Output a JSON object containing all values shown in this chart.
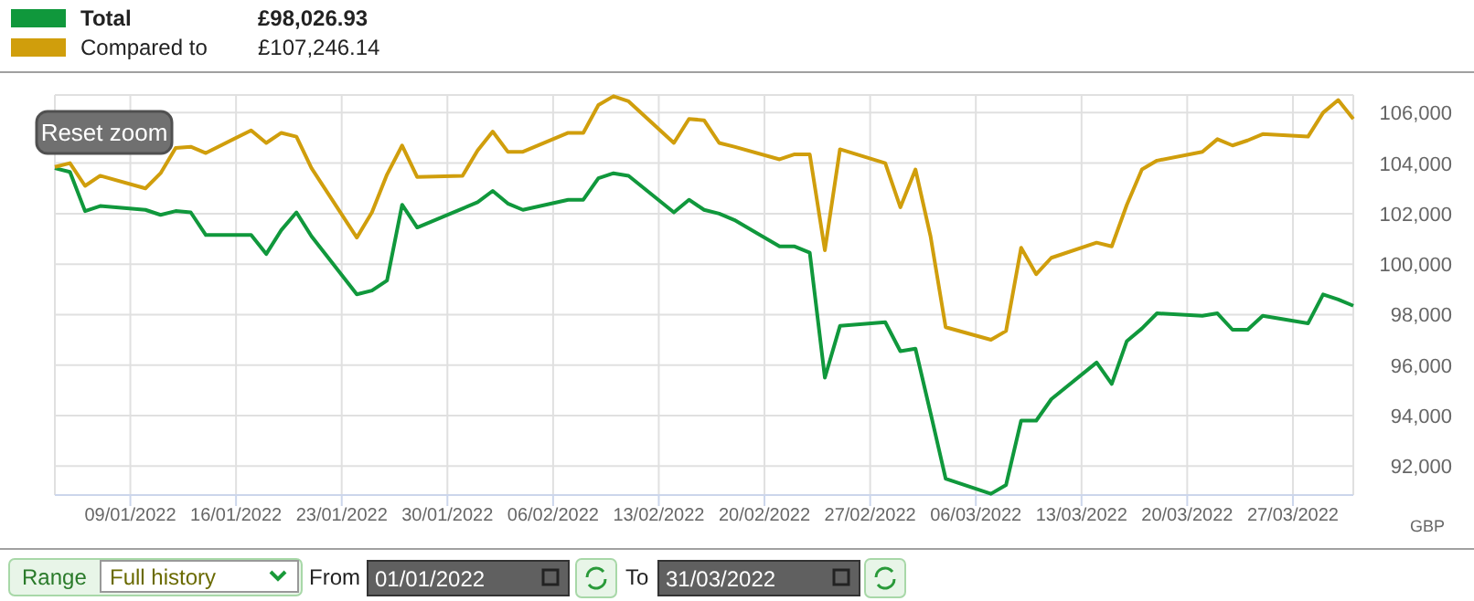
{
  "chart_data": {
    "type": "line",
    "ylabel": "GBP",
    "legend": "top left",
    "grid": true,
    "marker": "none",
    "line_style": "solid",
    "x": [
      "2022-01-04",
      "2022-01-05",
      "2022-01-06",
      "2022-01-07",
      "2022-01-10",
      "2022-01-11",
      "2022-01-12",
      "2022-01-13",
      "2022-01-14",
      "2022-01-17",
      "2022-01-18",
      "2022-01-19",
      "2022-01-20",
      "2022-01-21",
      "2022-01-24",
      "2022-01-25",
      "2022-01-26",
      "2022-01-27",
      "2022-01-28",
      "2022-01-31",
      "2022-02-01",
      "2022-02-02",
      "2022-02-03",
      "2022-02-04",
      "2022-02-07",
      "2022-02-08",
      "2022-02-09",
      "2022-02-10",
      "2022-02-11",
      "2022-02-14",
      "2022-02-15",
      "2022-02-16",
      "2022-02-17",
      "2022-02-18",
      "2022-02-21",
      "2022-02-22",
      "2022-02-23",
      "2022-02-24",
      "2022-02-25",
      "2022-02-28",
      "2022-03-01",
      "2022-03-02",
      "2022-03-03",
      "2022-03-04",
      "2022-03-07",
      "2022-03-08",
      "2022-03-09",
      "2022-03-10",
      "2022-03-11",
      "2022-03-14",
      "2022-03-15",
      "2022-03-16",
      "2022-03-17",
      "2022-03-18",
      "2022-03-21",
      "2022-03-22",
      "2022-03-23",
      "2022-03-24",
      "2022-03-25",
      "2022-03-28",
      "2022-03-29",
      "2022-03-30",
      "2022-03-31"
    ],
    "series": [
      {
        "name": "Total",
        "color": "#10983c",
        "values": [
          103800,
          103650,
          102100,
          102300,
          102150,
          101950,
          102100,
          102050,
          101150,
          101150,
          100400,
          101350,
          102050,
          101100,
          98800,
          98950,
          99350,
          102350,
          101450,
          102200,
          102450,
          102900,
          102400,
          102150,
          102550,
          102550,
          103400,
          103600,
          103500,
          102050,
          102550,
          102150,
          102000,
          101750,
          100700,
          100700,
          100450,
          95500,
          97550,
          97700,
          96550,
          96650,
          94100,
          91500,
          90900,
          91250,
          93800,
          93800,
          94650,
          96100,
          95250,
          96950,
          97450,
          98050,
          97950,
          98050,
          97400,
          97400,
          97950,
          97650,
          98800,
          98600,
          98350
        ]
      },
      {
        "name": "Compared to",
        "color": "#d09e0c",
        "values": [
          103850,
          104000,
          103100,
          103500,
          103000,
          103600,
          104600,
          104650,
          104400,
          105300,
          104800,
          105200,
          105050,
          103800,
          101050,
          102050,
          103550,
          104700,
          103450,
          103500,
          104500,
          105250,
          104450,
          104450,
          105200,
          105200,
          106300,
          106650,
          106450,
          104800,
          105750,
          105700,
          104800,
          104650,
          104150,
          104350,
          104350,
          100550,
          104550,
          104000,
          102250,
          103750,
          101100,
          97500,
          97000,
          97350,
          100650,
          99600,
          100250,
          100850,
          100700,
          102350,
          103750,
          104100,
          104450,
          104950,
          104700,
          104900,
          105150,
          105050,
          106000,
          106500,
          105750
        ]
      }
    ],
    "xlim": [
      "2022-01-04",
      "2022-03-31"
    ],
    "xticks": [
      {
        "value": "2022-01-09",
        "label": "09/01/2022"
      },
      {
        "value": "2022-01-16",
        "label": "16/01/2022"
      },
      {
        "value": "2022-01-23",
        "label": "23/01/2022"
      },
      {
        "value": "2022-01-30",
        "label": "30/01/2022"
      },
      {
        "value": "2022-02-06",
        "label": "06/02/2022"
      },
      {
        "value": "2022-02-13",
        "label": "13/02/2022"
      },
      {
        "value": "2022-02-20",
        "label": "20/02/2022"
      },
      {
        "value": "2022-02-27",
        "label": "27/02/2022"
      },
      {
        "value": "2022-03-06",
        "label": "06/03/2022"
      },
      {
        "value": "2022-03-13",
        "label": "13/03/2022"
      },
      {
        "value": "2022-03-20",
        "label": "20/03/2022"
      },
      {
        "value": "2022-03-27",
        "label": "27/03/2022"
      }
    ],
    "ylim": [
      90850,
      106700
    ],
    "yticks": [
      {
        "value": 92000,
        "label": "92,000"
      },
      {
        "value": 94000,
        "label": "94,000"
      },
      {
        "value": 96000,
        "label": "96,000"
      },
      {
        "value": 98000,
        "label": "98,000"
      },
      {
        "value": 100000,
        "label": "100,000"
      },
      {
        "value": 102000,
        "label": "102,000"
      },
      {
        "value": 104000,
        "label": "104,000"
      },
      {
        "value": 106000,
        "label": "106,000"
      }
    ],
    "annotations": [
      "£98,026.93",
      "£107,246.14",
      "Reset zoom",
      "Range",
      "Full history",
      "From",
      "01/01/2022",
      "To",
      "31/03/2022"
    ]
  }
}
